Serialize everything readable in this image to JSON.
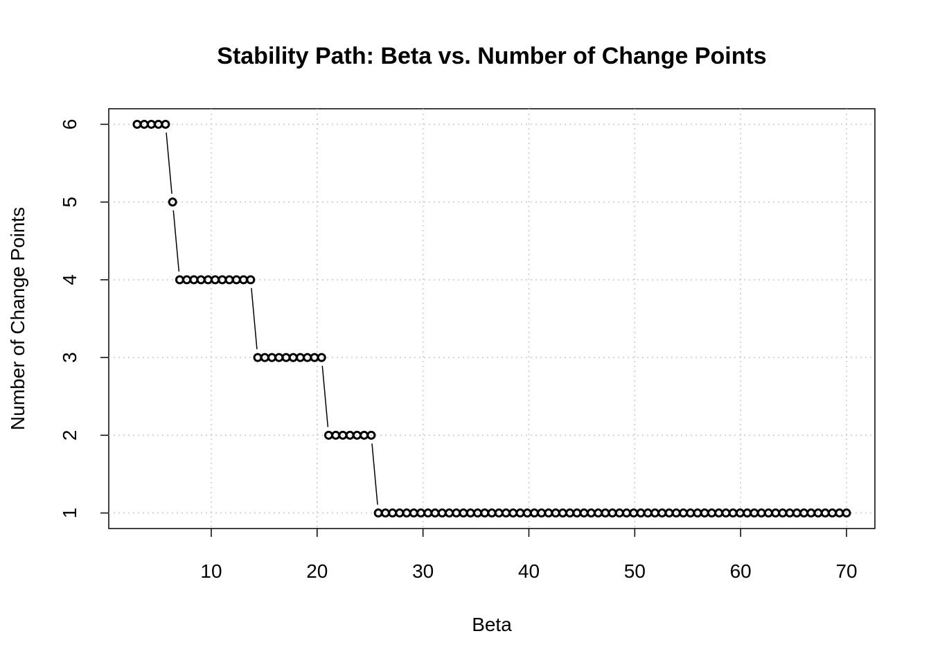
{
  "chart_data": {
    "type": "line",
    "title": "Stability Path: Beta vs. Number of Change Points",
    "x_label": "Beta",
    "y_label": "Number of Change Points",
    "x": [
      3,
      3.67,
      4.34,
      5.01,
      5.68,
      6.35,
      7.02,
      7.69,
      8.36,
      9.03,
      9.7,
      10.37,
      11.04,
      11.71,
      12.38,
      13.05,
      13.72,
      14.39,
      15.06,
      15.73,
      16.4,
      17.07,
      17.74,
      18.41,
      19.08,
      19.75,
      20.42,
      21.09,
      21.76,
      22.43,
      23.1,
      23.77,
      24.44,
      25.11,
      25.78,
      26.45,
      27.12,
      27.79,
      28.46,
      29.13,
      29.8,
      30.47,
      31.14,
      31.81,
      32.48,
      33.15,
      33.82,
      34.49,
      35.16,
      35.83,
      36.5,
      37.17,
      37.84,
      38.51,
      39.18,
      39.85,
      40.52,
      41.19,
      41.86,
      42.53,
      43.2,
      43.87,
      44.54,
      45.21,
      45.88,
      46.55,
      47.22,
      47.89,
      48.56,
      49.23,
      49.9,
      50.57,
      51.24,
      51.91,
      52.58,
      53.25,
      53.92,
      54.59,
      55.26,
      55.93,
      56.6,
      57.27,
      57.94,
      58.61,
      59.28,
      59.95,
      60.62,
      61.29,
      61.96,
      62.63,
      63.3,
      63.97,
      64.64,
      65.31,
      65.98,
      66.65,
      67.32,
      67.99,
      68.66,
      69.33,
      70
    ],
    "values": [
      6,
      6,
      6,
      6,
      6,
      5,
      4,
      4,
      4,
      4,
      4,
      4,
      4,
      4,
      4,
      4,
      4,
      3,
      3,
      3,
      3,
      3,
      3,
      3,
      3,
      3,
      3,
      2,
      2,
      2,
      2,
      2,
      2,
      2,
      1,
      1,
      1,
      1,
      1,
      1,
      1,
      1,
      1,
      1,
      1,
      1,
      1,
      1,
      1,
      1,
      1,
      1,
      1,
      1,
      1,
      1,
      1,
      1,
      1,
      1,
      1,
      1,
      1,
      1,
      1,
      1,
      1,
      1,
      1,
      1,
      1,
      1,
      1,
      1,
      1,
      1,
      1,
      1,
      1,
      1,
      1,
      1,
      1,
      1,
      1,
      1,
      1,
      1,
      1,
      1,
      1,
      1,
      1,
      1,
      1,
      1,
      1,
      1,
      1,
      1,
      1
    ],
    "color": "#000000",
    "xlim": [
      0.32,
      72.68
    ],
    "ylim": [
      0.8,
      6.2
    ],
    "xticks": [
      10,
      20,
      30,
      40,
      50,
      60,
      70
    ],
    "yticks": [
      1,
      2,
      3,
      4,
      5,
      6
    ],
    "grid": true
  }
}
